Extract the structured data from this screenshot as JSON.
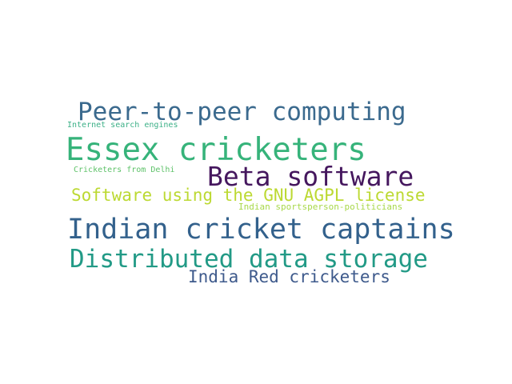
{
  "word_cloud": {
    "words": [
      {
        "text": "Peer-to-peer computing",
        "color": "#3b6a8e"
      },
      {
        "text": "Internet search engines",
        "color": "#3cb087"
      },
      {
        "text": "Essex cricketers",
        "color": "#36b37a"
      },
      {
        "text": "Cricketers from Delhi",
        "color": "#5ec269"
      },
      {
        "text": "Beta software",
        "color": "#45175e"
      },
      {
        "text": "Software using the GNU AGPL license",
        "color": "#bcd932"
      },
      {
        "text": "Indian sportsperson-politicians",
        "color": "#a8d84a"
      },
      {
        "text": "Indian cricket captains",
        "color": "#33618c"
      },
      {
        "text": "Distributed data storage",
        "color": "#229a86"
      },
      {
        "text": "India Red cricketers",
        "color": "#3e5a8c"
      }
    ]
  }
}
